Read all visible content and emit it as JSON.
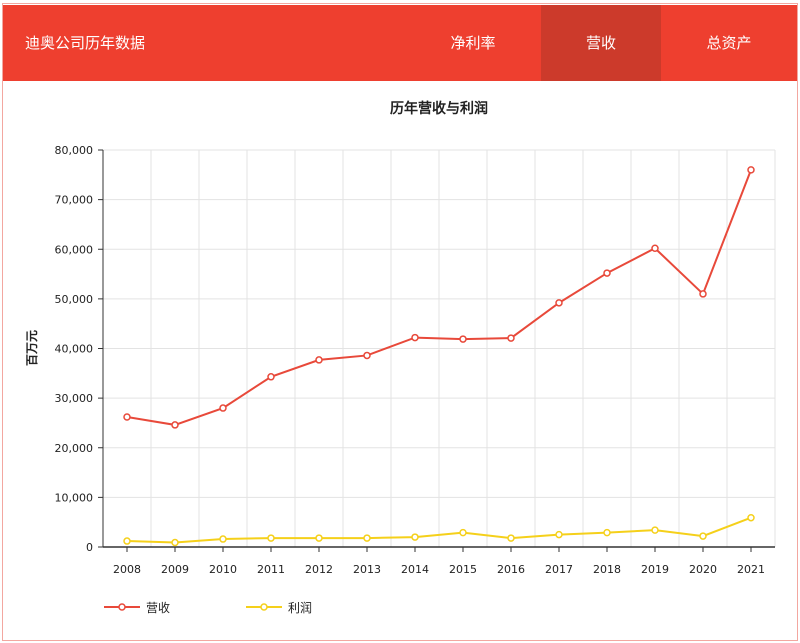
{
  "header": {
    "brand": "迪奥公司历年数据",
    "tabs": [
      {
        "label": "净利率"
      },
      {
        "label": "营收",
        "active": true
      },
      {
        "label": "总资产"
      }
    ]
  },
  "chart_data": {
    "type": "line",
    "title": "历年营收与利润",
    "ylabel": "百万元",
    "xlabel": "",
    "ylim": [
      0,
      80000
    ],
    "yticks": [
      "0",
      "10,000",
      "20,000",
      "30,000",
      "40,000",
      "50,000",
      "60,000",
      "70,000",
      "80,000"
    ],
    "categories": [
      "2008",
      "2009",
      "2010",
      "2011",
      "2012",
      "2013",
      "2014",
      "2015",
      "2016",
      "2017",
      "2018",
      "2019",
      "2020",
      "2021"
    ],
    "series": [
      {
        "name": "营收",
        "color": "#e8493a",
        "values": [
          26200,
          24600,
          28000,
          34300,
          37700,
          38600,
          42200,
          41900,
          42100,
          49200,
          55200,
          60200,
          51000,
          76000
        ]
      },
      {
        "name": "利润",
        "color": "#f5d01a",
        "values": [
          1200,
          900,
          1600,
          1800,
          1800,
          1800,
          2000,
          2900,
          1800,
          2500,
          2900,
          3400,
          2200,
          5900
        ]
      }
    ],
    "legend": "bottom-left",
    "grid": true
  }
}
